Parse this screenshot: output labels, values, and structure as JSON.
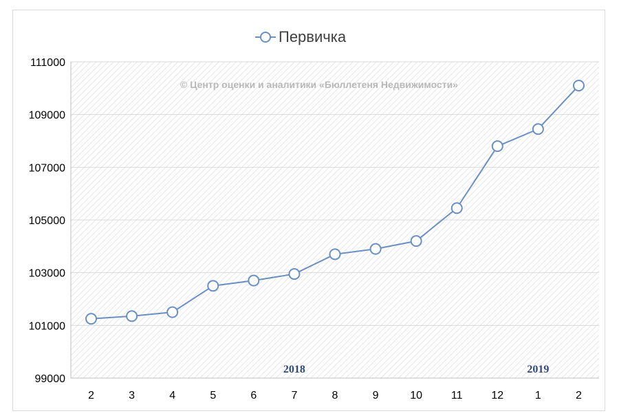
{
  "chart_data": {
    "type": "line",
    "title": "",
    "xlabel": "",
    "ylabel": "",
    "categories": [
      "2",
      "3",
      "4",
      "5",
      "6",
      "7",
      "8",
      "9",
      "10",
      "11",
      "12",
      "1",
      "2"
    ],
    "series": [
      {
        "name": "Первичка",
        "values": [
          101250,
          101350,
          101500,
          102500,
          102700,
          102950,
          103700,
          103900,
          104200,
          105450,
          107800,
          108450,
          110100
        ]
      }
    ],
    "ylim": [
      99000,
      111000
    ],
    "yticks": [
      99000,
      101000,
      103000,
      105000,
      107000,
      109000,
      111000
    ],
    "grid": true,
    "legend": "top-center",
    "line_color": "#6a8fc3",
    "marker_fill": "#ffffff",
    "watermark": "© Центр оценки и аналитики «Бюллетеня Недвижимости»",
    "year_labels": [
      {
        "text": "2018",
        "at_category_index": 5
      },
      {
        "text": "2019",
        "at_category_index": 11
      }
    ]
  }
}
